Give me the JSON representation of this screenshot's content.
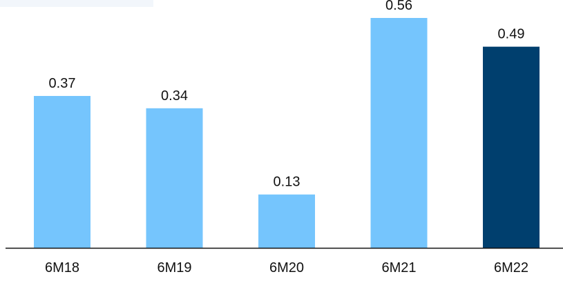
{
  "chart_data": {
    "type": "bar",
    "categories": [
      "6M18",
      "6M19",
      "6M20",
      "6M21",
      "6M22"
    ],
    "values": [
      0.37,
      0.34,
      0.13,
      0.56,
      0.49
    ],
    "value_labels": [
      "0.37",
      "0.34",
      "0.13",
      "0.56",
      "0.49"
    ],
    "bar_colors": [
      "#75c5fd",
      "#75c5fd",
      "#75c5fd",
      "#75c5fd",
      "#003f6e"
    ],
    "title": "",
    "xlabel": "",
    "ylabel": "",
    "ylim": [
      0,
      0.56
    ],
    "grid": false,
    "legend": "none"
  }
}
